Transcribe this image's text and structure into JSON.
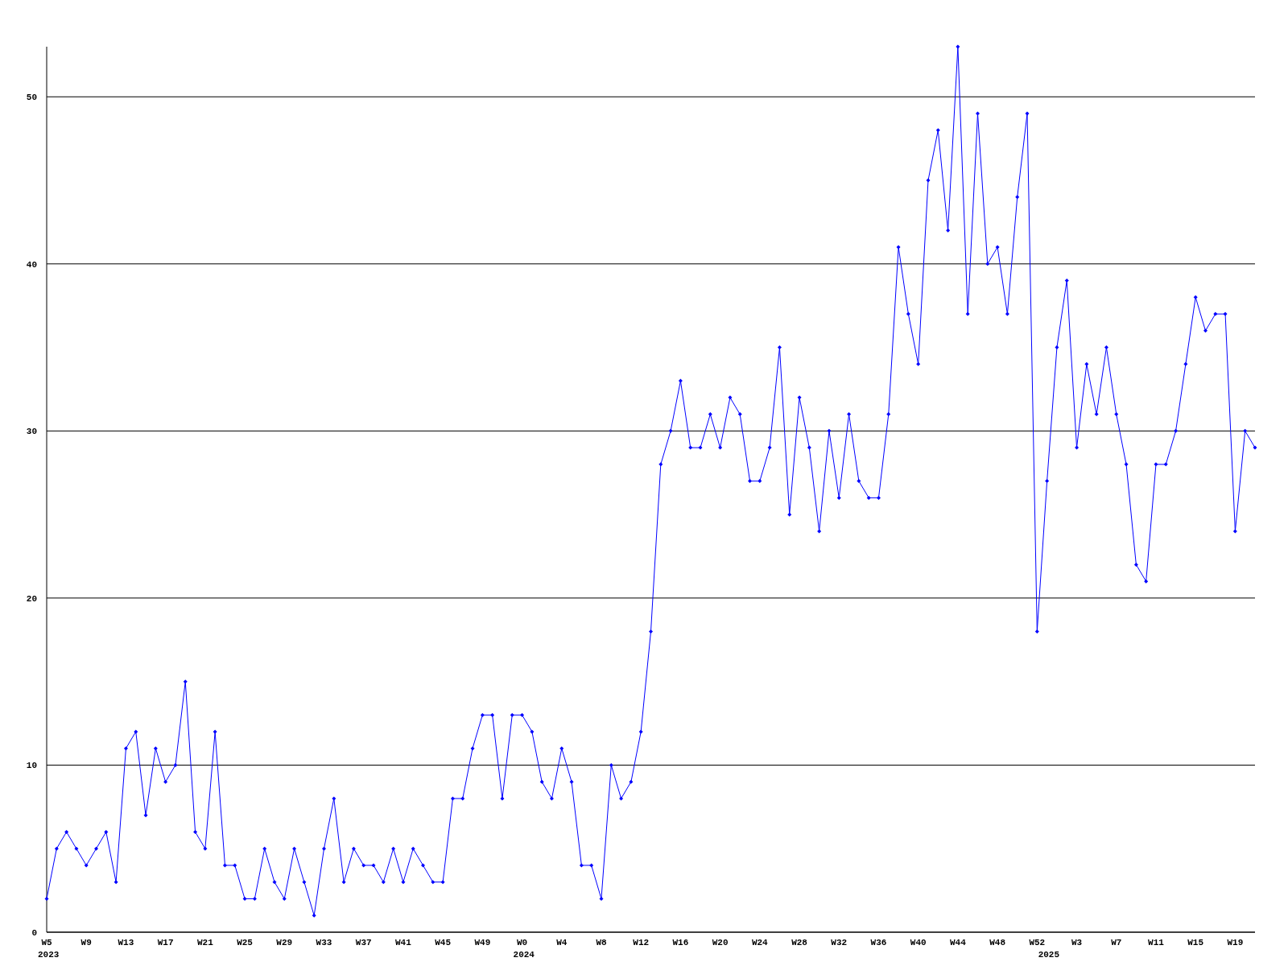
{
  "chart_data": {
    "type": "line",
    "categories": [
      "W5",
      null,
      null,
      null,
      "W9",
      null,
      null,
      null,
      "W13",
      null,
      null,
      null,
      "W17",
      null,
      null,
      null,
      "W21",
      null,
      null,
      null,
      "W25",
      null,
      null,
      null,
      "W29",
      null,
      null,
      null,
      "W33",
      null,
      null,
      null,
      "W37",
      null,
      null,
      null,
      "W41",
      null,
      null,
      null,
      "W45",
      null,
      null,
      null,
      "W49",
      null,
      null,
      null,
      "W0",
      null,
      null,
      null,
      "W4",
      null,
      null,
      null,
      "W8",
      null,
      null,
      null,
      "W12",
      null,
      null,
      null,
      "W16",
      null,
      null,
      null,
      "W20",
      null,
      null,
      null,
      "W24",
      null,
      null,
      null,
      "W28",
      null,
      null,
      null,
      "W32",
      null,
      null,
      null,
      "W36",
      null,
      null,
      null,
      "W40",
      null,
      null,
      null,
      "W44",
      null,
      null,
      null,
      "W48",
      null,
      null,
      null,
      "W52",
      null,
      null,
      null,
      "W3",
      null,
      null,
      null,
      "W7",
      null,
      null,
      null,
      "W11",
      null,
      null,
      null,
      "W15",
      null,
      null,
      null,
      "W19",
      null,
      null
    ],
    "series": [
      {
        "color": "#0000ff",
        "values": [
          2,
          5,
          6,
          5,
          4,
          5,
          6,
          3,
          11,
          12,
          7,
          11,
          9,
          10,
          15,
          6,
          5,
          12,
          4,
          4,
          2,
          2,
          5,
          3,
          2,
          5,
          3,
          1,
          5,
          8,
          3,
          5,
          4,
          4,
          3,
          5,
          3,
          5,
          4,
          3,
          3,
          8,
          8,
          11,
          13,
          13,
          8,
          13,
          13,
          12,
          9,
          8,
          11,
          9,
          4,
          4,
          2,
          10,
          8,
          9,
          12,
          18,
          28,
          30,
          33,
          29,
          29,
          31,
          29,
          32,
          31,
          27,
          27,
          29,
          35,
          25,
          32,
          29,
          24,
          30,
          26,
          31,
          27,
          26,
          26,
          31,
          41,
          37,
          34,
          45,
          48,
          42,
          53,
          37,
          49,
          40,
          41,
          37,
          44,
          49,
          18,
          27,
          35,
          39,
          29,
          34,
          31,
          35,
          31,
          28,
          22,
          21,
          28,
          28,
          30,
          34,
          38,
          36,
          37,
          37,
          24,
          30,
          29
        ]
      }
    ],
    "ylim": [
      0,
      53
    ],
    "yticks": [
      0,
      10,
      20,
      30,
      40,
      50
    ],
    "grid": "y",
    "marker": "diamond",
    "line_style": "solid",
    "annotations": [
      "2023",
      "2024",
      "2025"
    ]
  }
}
